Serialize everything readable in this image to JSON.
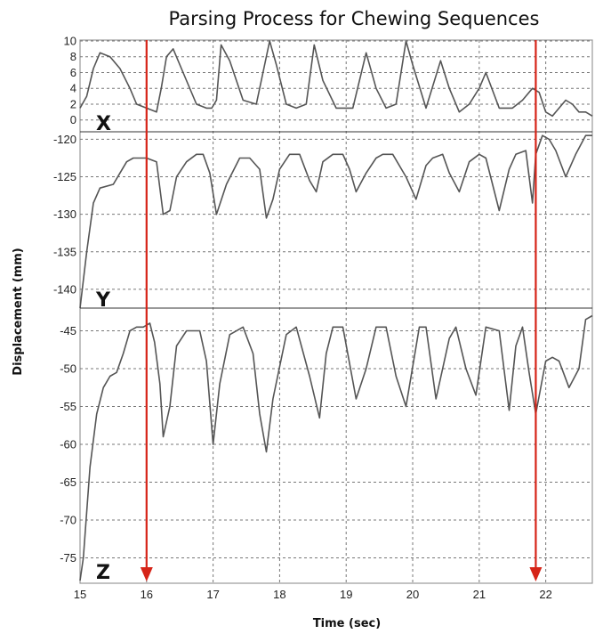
{
  "chart_data": {
    "type": "line",
    "title": "Parsing Process for Chewing Sequences",
    "xlabel": "Time (sec)",
    "ylabel": "Displacement (mm)",
    "xlim": [
      15,
      22.7
    ],
    "x_ticks": [
      "15",
      "16",
      "17",
      "18",
      "19",
      "20",
      "21",
      "22"
    ],
    "grid": true,
    "colors": {
      "trace": "#555555",
      "marker": "#d62418"
    },
    "markers": [
      16.0,
      21.85
    ],
    "panels": [
      {
        "name": "X",
        "label": "X",
        "ylim": [
          -1.5,
          10
        ],
        "y_ticks": [
          10,
          8,
          6,
          4,
          2,
          0
        ],
        "x": [
          15.0,
          15.1,
          15.2,
          15.3,
          15.45,
          15.6,
          15.75,
          15.85,
          16.0,
          16.15,
          16.22,
          16.3,
          16.4,
          16.55,
          16.75,
          16.9,
          16.98,
          17.05,
          17.12,
          17.25,
          17.45,
          17.65,
          17.75,
          17.85,
          17.95,
          18.1,
          18.25,
          18.4,
          18.52,
          18.65,
          18.85,
          19.0,
          19.1,
          19.3,
          19.45,
          19.6,
          19.75,
          19.9,
          20.0,
          20.2,
          20.42,
          20.55,
          20.7,
          20.85,
          21.0,
          21.1,
          21.3,
          21.5,
          21.65,
          21.8,
          21.9,
          22.0,
          22.1,
          22.2,
          22.3,
          22.4,
          22.5,
          22.6,
          22.7
        ],
        "y": [
          1.5,
          3.0,
          6.5,
          8.5,
          8.0,
          6.5,
          4.0,
          2.0,
          1.5,
          1.0,
          4.0,
          8.0,
          9.0,
          6.0,
          2.0,
          1.5,
          1.5,
          2.5,
          9.5,
          7.5,
          2.5,
          2.0,
          6.0,
          10.0,
          7.0,
          2.0,
          1.5,
          2.0,
          9.5,
          5.0,
          1.5,
          1.5,
          1.5,
          8.5,
          4.0,
          1.5,
          2.0,
          10.0,
          7.0,
          1.5,
          7.5,
          4.0,
          1.0,
          2.0,
          4.0,
          6.0,
          1.5,
          1.5,
          2.5,
          4.0,
          3.5,
          1.0,
          0.5,
          1.5,
          2.5,
          2.0,
          1.0,
          1.0,
          0.5
        ]
      },
      {
        "name": "Y",
        "label": "Y",
        "ylim": [
          -142.5,
          -119
        ],
        "y_ticks": [
          -120,
          -125,
          -130,
          -135,
          -140
        ],
        "x": [
          15.0,
          15.1,
          15.2,
          15.3,
          15.5,
          15.6,
          15.7,
          15.8,
          15.9,
          16.0,
          16.15,
          16.25,
          16.35,
          16.45,
          16.6,
          16.75,
          16.85,
          16.95,
          17.05,
          17.2,
          17.4,
          17.55,
          17.7,
          17.8,
          17.9,
          18.0,
          18.15,
          18.3,
          18.45,
          18.55,
          18.65,
          18.8,
          18.95,
          19.05,
          19.15,
          19.3,
          19.45,
          19.55,
          19.7,
          19.9,
          20.05,
          20.2,
          20.3,
          20.45,
          20.55,
          20.7,
          20.85,
          21.0,
          21.1,
          21.3,
          21.45,
          21.55,
          21.7,
          21.8,
          21.85,
          21.95,
          22.05,
          22.15,
          22.3,
          22.45,
          22.6,
          22.7
        ],
        "y": [
          -142.5,
          -135.0,
          -128.5,
          -126.5,
          -126.0,
          -124.5,
          -123.0,
          -122.5,
          -122.5,
          -122.5,
          -123.0,
          -130.0,
          -129.5,
          -125.0,
          -123.0,
          -122.0,
          -122.0,
          -124.5,
          -130.0,
          -126.0,
          -122.5,
          -122.5,
          -124.0,
          -130.5,
          -128.0,
          -124.0,
          -122.0,
          -122.0,
          -125.5,
          -127.0,
          -123.0,
          -122.0,
          -122.0,
          -124.0,
          -127.0,
          -124.5,
          -122.5,
          -122.0,
          -122.0,
          -125.0,
          -128.0,
          -123.5,
          -122.5,
          -122.0,
          -124.5,
          -127.0,
          -123.0,
          -122.0,
          -122.5,
          -129.5,
          -124.0,
          -122.0,
          -121.5,
          -128.5,
          -122.0,
          -119.5,
          -120.0,
          -121.5,
          -125.0,
          -122.0,
          -119.5,
          -119.5
        ]
      },
      {
        "name": "Z",
        "label": "Z",
        "ylim": [
          -78,
          -42
        ],
        "y_ticks": [
          -45,
          -50,
          -55,
          -60,
          -65,
          -70,
          -75
        ],
        "x": [
          15.0,
          15.05,
          15.15,
          15.25,
          15.35,
          15.45,
          15.55,
          15.65,
          15.75,
          15.85,
          15.95,
          16.05,
          16.12,
          16.2,
          16.25,
          16.35,
          16.45,
          16.6,
          16.8,
          16.9,
          17.0,
          17.1,
          17.25,
          17.45,
          17.6,
          17.7,
          17.8,
          17.9,
          18.1,
          18.25,
          18.45,
          18.6,
          18.7,
          18.8,
          18.95,
          19.15,
          19.3,
          19.45,
          19.6,
          19.75,
          19.9,
          20.1,
          20.2,
          20.35,
          20.55,
          20.65,
          20.8,
          20.95,
          21.1,
          21.3,
          21.45,
          21.55,
          21.65,
          21.75,
          21.85,
          22.0,
          22.1,
          22.2,
          22.35,
          22.5,
          22.6,
          22.7
        ],
        "y": [
          -78.0,
          -75.0,
          -63.0,
          -56.0,
          -52.5,
          -51.0,
          -50.5,
          -48.0,
          -45.0,
          -44.5,
          -44.5,
          -44.0,
          -46.5,
          -52.0,
          -59.0,
          -55.0,
          -47.0,
          -45.0,
          -45.0,
          -49.0,
          -60.0,
          -52.0,
          -45.5,
          -44.5,
          -48.0,
          -56.0,
          -61.0,
          -54.0,
          -45.5,
          -44.5,
          -51.0,
          -56.5,
          -48.0,
          -44.5,
          -44.5,
          -54.0,
          -50.0,
          -44.5,
          -44.5,
          -51.0,
          -55.0,
          -44.5,
          -44.5,
          -54.0,
          -46.0,
          -44.5,
          -50.0,
          -53.5,
          -44.5,
          -45.0,
          -55.5,
          -47.0,
          -44.5,
          -50.5,
          -56.0,
          -49.0,
          -48.5,
          -49.0,
          -52.5,
          -50.0,
          -43.5,
          -43.0
        ]
      }
    ]
  }
}
